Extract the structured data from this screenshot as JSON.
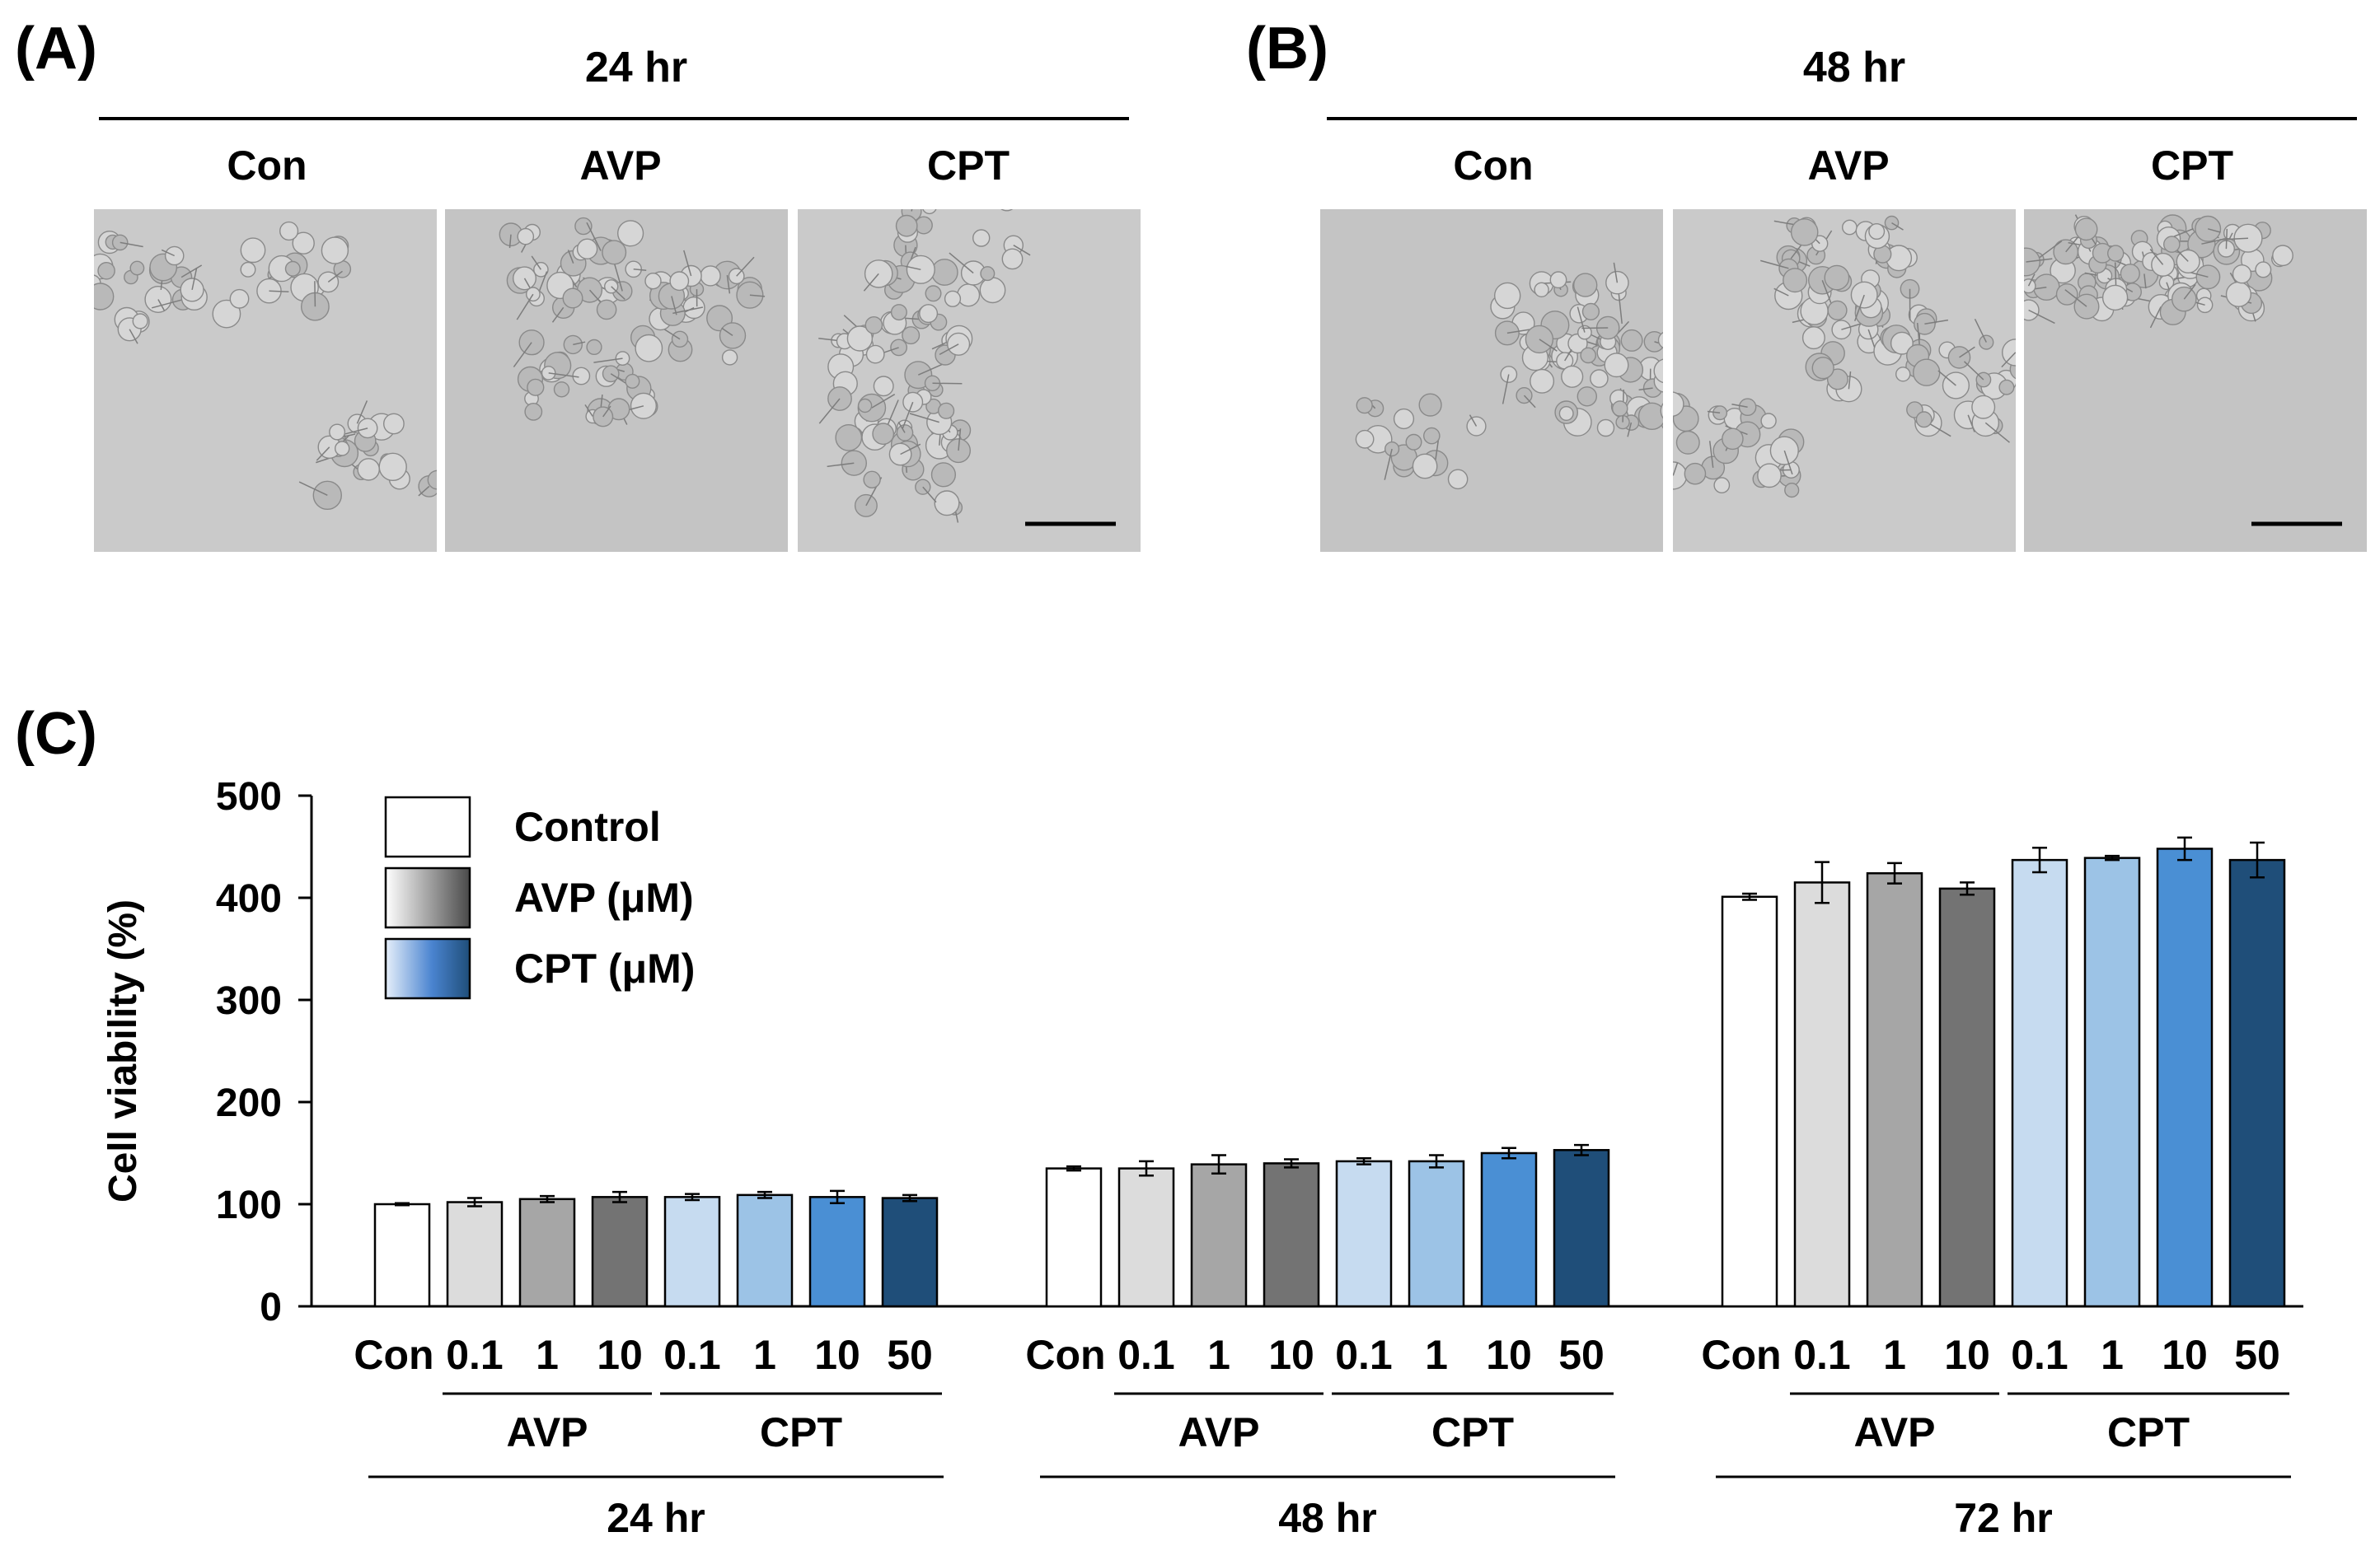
{
  "panel_a": {
    "letter": "(A)",
    "time": "24 hr",
    "columns": [
      "Con",
      "AVP",
      "CPT"
    ]
  },
  "panel_b": {
    "letter": "(B)",
    "time": "48 hr",
    "columns": [
      "Con",
      "AVP",
      "CPT"
    ]
  },
  "panel_c": {
    "letter": "(C)"
  },
  "colors": {
    "control": "#ffffff",
    "avp": [
      "#dcdcdc",
      "#a6a6a6",
      "#737373"
    ],
    "cpt": [
      "#c6dbf0",
      "#9cc3e6",
      "#4a8fd4",
      "#1f4e79"
    ]
  },
  "chart_data": {
    "type": "bar",
    "ylabel": "Cell viability (%)",
    "ylim": [
      0,
      500
    ],
    "yticks": [
      0,
      100,
      200,
      300,
      400,
      500
    ],
    "legend": {
      "position": "top-left",
      "entries": [
        "Control",
        "AVP (μM)",
        "CPT (μM)"
      ]
    },
    "treatment_labels": [
      "AVP",
      "CPT"
    ],
    "groups": [
      {
        "time": "24 hr",
        "categories": [
          "Con",
          "0.1",
          "1",
          "10",
          "0.1",
          "1",
          "10",
          "50"
        ],
        "treatment": [
          "Control",
          "AVP",
          "AVP",
          "AVP",
          "CPT",
          "CPT",
          "CPT",
          "CPT"
        ],
        "values": [
          100,
          102,
          105,
          107,
          107,
          109,
          107,
          106
        ],
        "errors": [
          1,
          4,
          3,
          5,
          3,
          3,
          6,
          3
        ]
      },
      {
        "time": "48 hr",
        "categories": [
          "Con",
          "0.1",
          "1",
          "10",
          "0.1",
          "1",
          "10",
          "50"
        ],
        "treatment": [
          "Control",
          "AVP",
          "AVP",
          "AVP",
          "CPT",
          "CPT",
          "CPT",
          "CPT"
        ],
        "values": [
          135,
          135,
          139,
          140,
          142,
          142,
          150,
          153
        ],
        "errors": [
          2,
          7,
          9,
          4,
          3,
          6,
          5,
          5
        ]
      },
      {
        "time": "72 hr",
        "categories": [
          "Con",
          "0.1",
          "1",
          "10",
          "0.1",
          "1",
          "10",
          "50"
        ],
        "treatment": [
          "Control",
          "AVP",
          "AVP",
          "AVP",
          "CPT",
          "CPT",
          "CPT",
          "CPT"
        ],
        "values": [
          401,
          415,
          424,
          409,
          437,
          439,
          448,
          437
        ],
        "errors": [
          3,
          20,
          10,
          6,
          12,
          2,
          11,
          17
        ]
      }
    ]
  }
}
